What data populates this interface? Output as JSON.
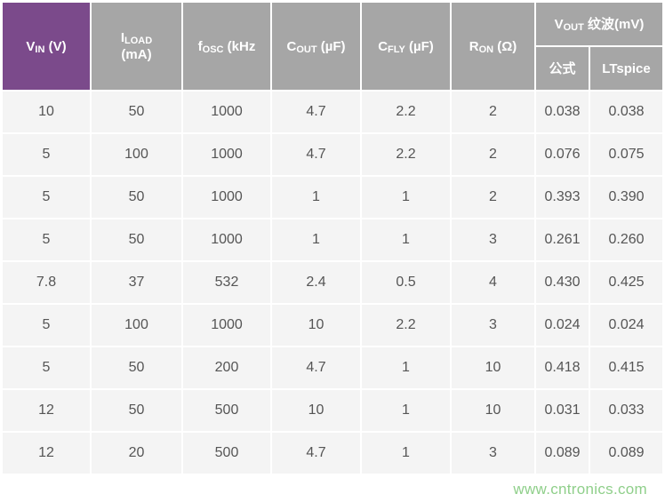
{
  "header": {
    "vin": {
      "main": "V",
      "sub": "IN",
      "unit": " (V)"
    },
    "iload": {
      "main": "I",
      "sub": "LOAD",
      "unit": "(mA)"
    },
    "fosc": {
      "main": "f",
      "sub": "OSC",
      "unit": " (kHz"
    },
    "cout": {
      "main": "C",
      "sub": "OUT",
      "unit": " (µF)"
    },
    "cfly": {
      "main": "C",
      "sub": "FLY",
      "unit": " (µF)"
    },
    "ron": {
      "main": "R",
      "sub": "ON",
      "unit": " (Ω)"
    },
    "vout": {
      "main": "V",
      "sub": "OUT",
      "unit": " 纹波(mV)"
    },
    "formula": "公式",
    "ltspice": "LTspice"
  },
  "rows": [
    [
      "10",
      "50",
      "1000",
      "4.7",
      "2.2",
      "2",
      "0.038",
      "0.038"
    ],
    [
      "5",
      "100",
      "1000",
      "4.7",
      "2.2",
      "2",
      "0.076",
      "0.075"
    ],
    [
      "5",
      "50",
      "1000",
      "1",
      "1",
      "2",
      "0.393",
      "0.390"
    ],
    [
      "5",
      "50",
      "1000",
      "1",
      "1",
      "3",
      "0.261",
      "0.260"
    ],
    [
      "7.8",
      "37",
      "532",
      "2.4",
      "0.5",
      "4",
      "0.430",
      "0.425"
    ],
    [
      "5",
      "100",
      "1000",
      "10",
      "2.2",
      "3",
      "0.024",
      "0.024"
    ],
    [
      "5",
      "50",
      "200",
      "4.7",
      "1",
      "10",
      "0.418",
      "0.415"
    ],
    [
      "12",
      "50",
      "500",
      "10",
      "1",
      "10",
      "0.031",
      "0.033"
    ],
    [
      "12",
      "20",
      "500",
      "4.7",
      "1",
      "3",
      "0.089",
      "0.089"
    ]
  ],
  "watermark": "www.cntronics.com",
  "colors": {
    "accent": "#7b4a8b",
    "header": "#a6a6a6",
    "cell": "#f4f4f4"
  }
}
